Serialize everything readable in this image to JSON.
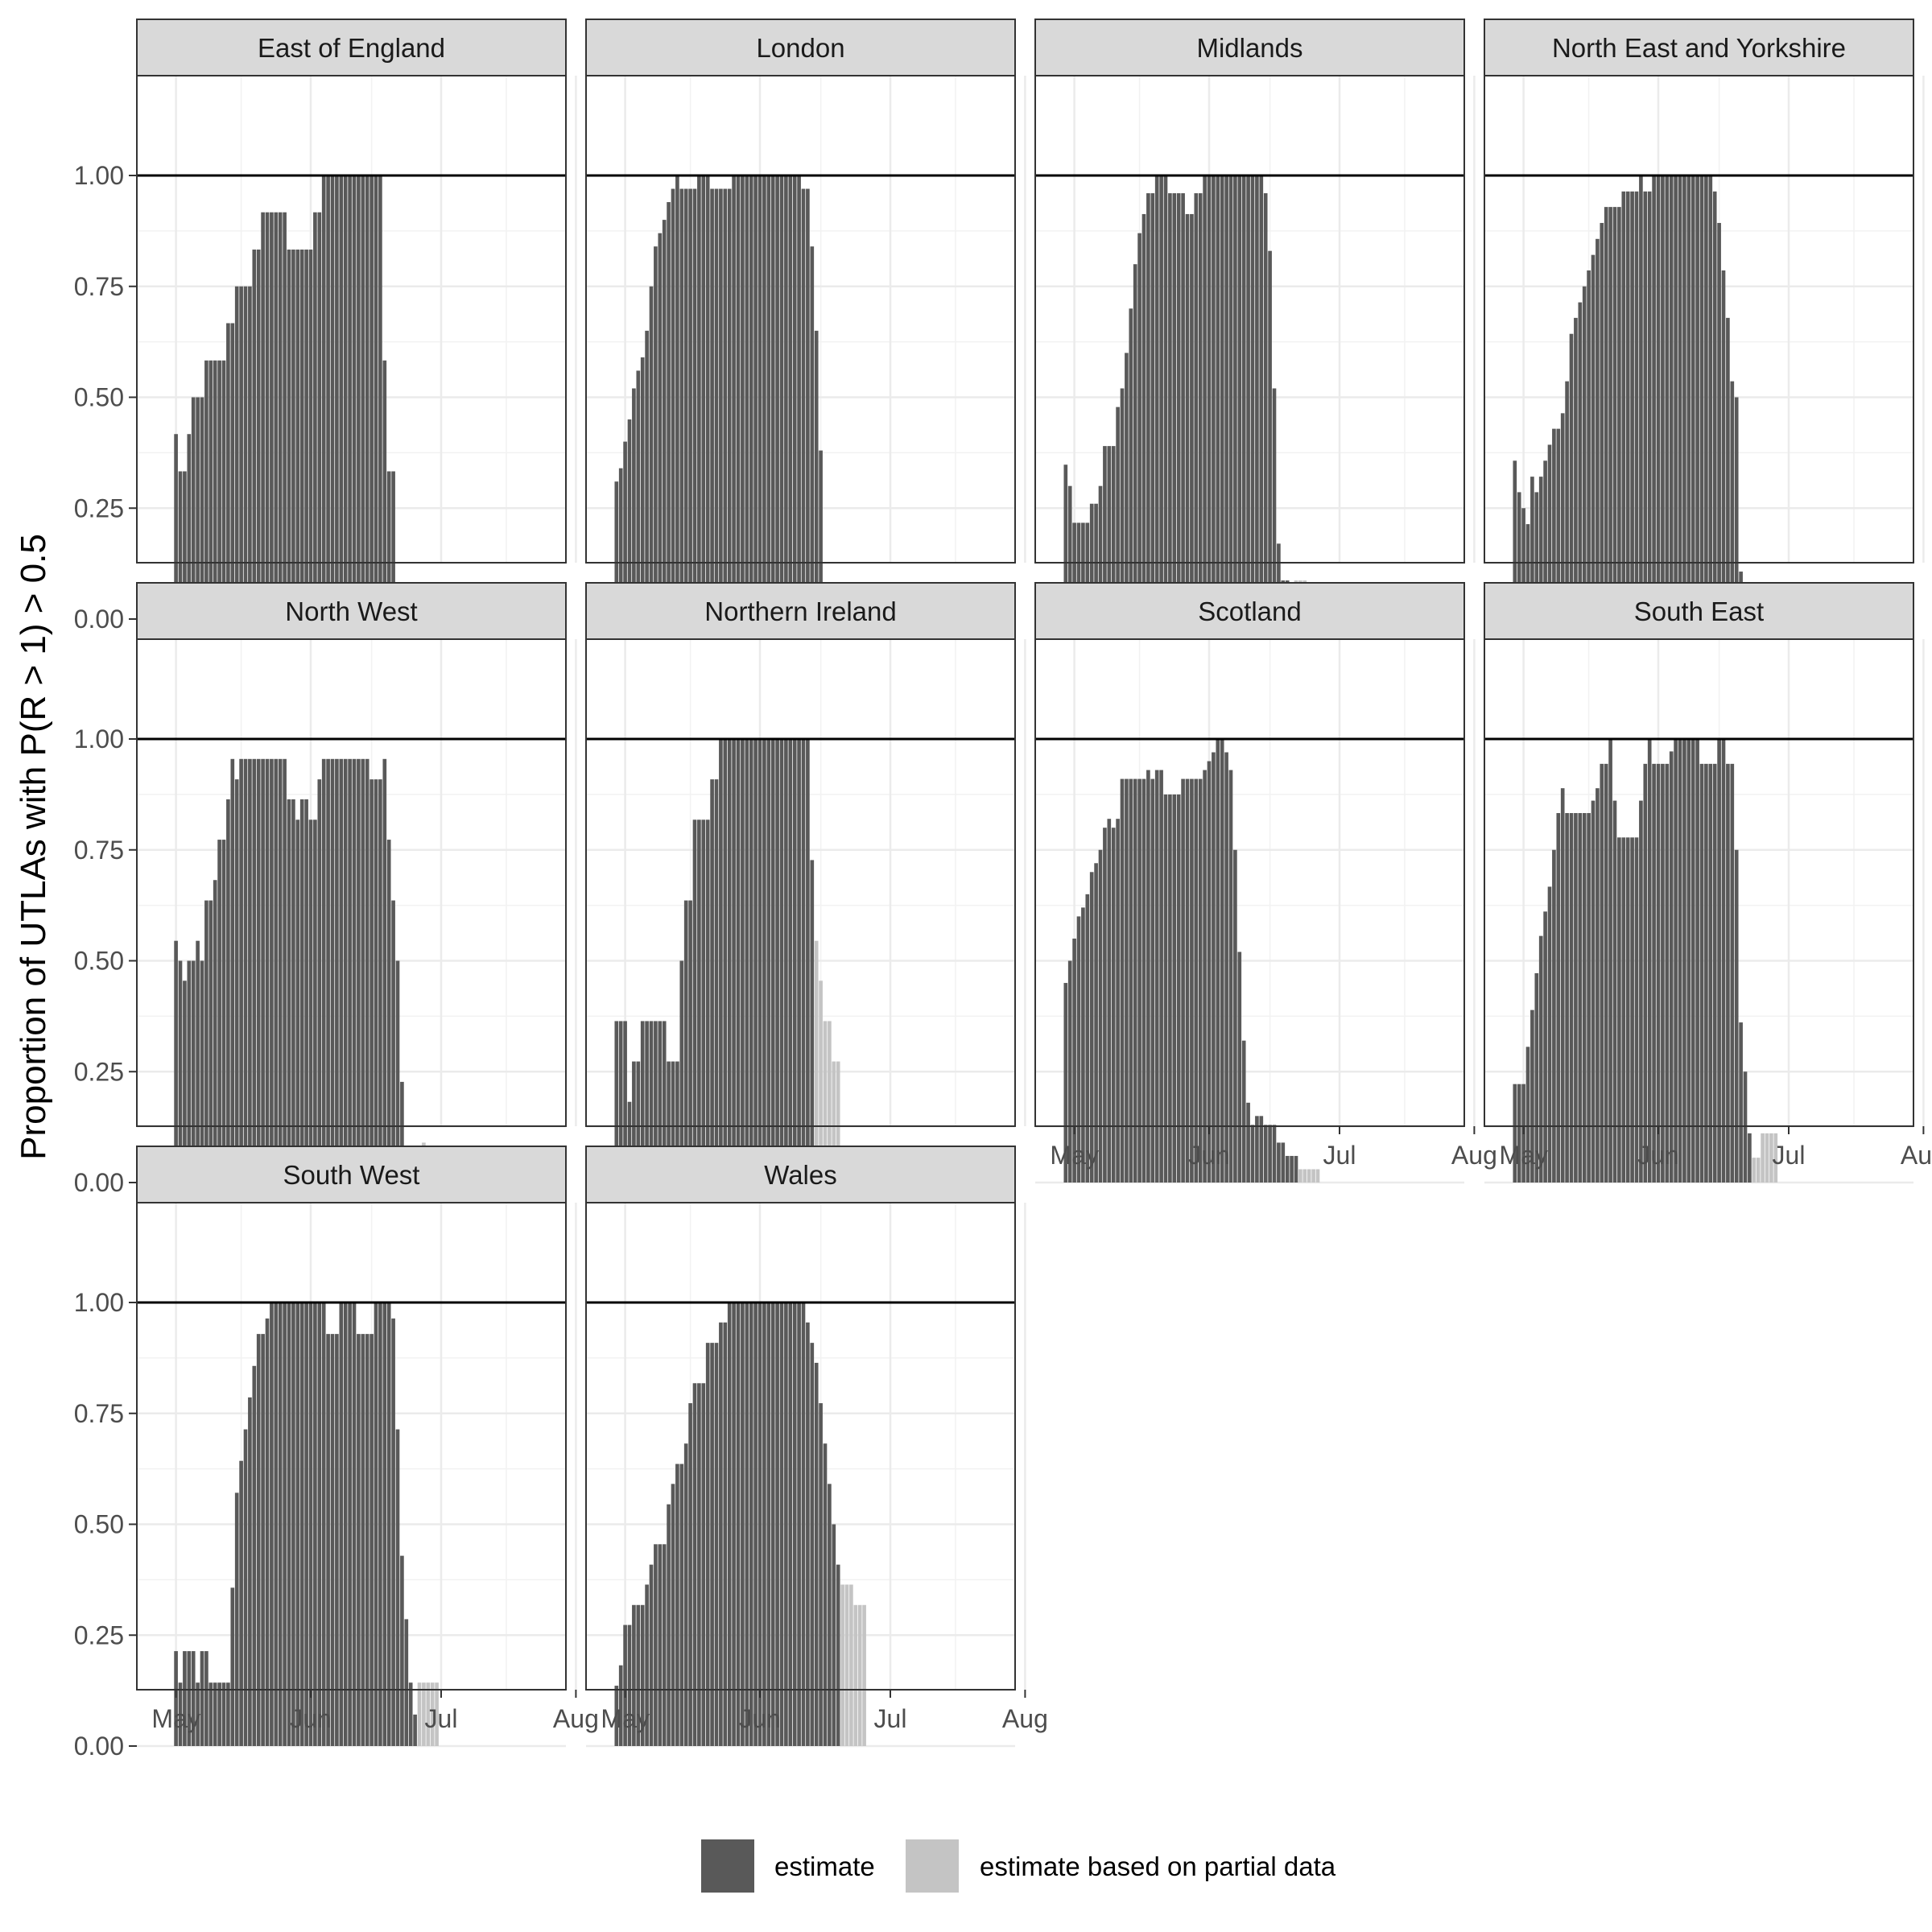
{
  "chart_data": {
    "type": "bar",
    "layout": "facet-grid",
    "ylabel": "Proportion of UTLAs with P(R > 1) > 0.5",
    "xlabel": "",
    "ylim": [
      0,
      1.05
    ],
    "y_ticks": [
      "0.00",
      "0.25",
      "0.50",
      "0.75",
      "1.00"
    ],
    "y_tick_values": [
      0,
      0.25,
      0.5,
      0.75,
      1.0
    ],
    "x_ticks": [
      "May",
      "Jun",
      "Jul",
      "Aug"
    ],
    "x_tick_dates": [
      "2021-05-01",
      "2021-06-01",
      "2021-07-01",
      "2021-08-01"
    ],
    "xlim": [
      "2021-04-27",
      "2021-08-01"
    ],
    "reference_line_y": 1.0,
    "grid": true,
    "legend": {
      "position": "bottom",
      "entries": [
        {
          "label": "estimate",
          "color": "#595959"
        },
        {
          "label": "estimate based on partial data",
          "color": "#c4c4c4"
        }
      ]
    },
    "panels": [
      {
        "name": "East of England",
        "dates": {
          "start": "2021-05-01",
          "end": "2021-07-26"
        },
        "segments": [
          [
            1,
            0.417
          ],
          [
            2,
            0.333
          ],
          [
            1,
            0.417
          ],
          [
            3,
            0.5
          ],
          [
            5,
            0.583
          ],
          [
            2,
            0.667
          ],
          [
            4,
            0.75
          ],
          [
            2,
            0.833
          ],
          [
            6,
            0.917
          ],
          [
            6,
            0.833
          ],
          [
            1,
            0.917
          ],
          [
            1,
            0.917
          ],
          [
            14,
            1.0
          ],
          [
            1,
            0.583
          ],
          [
            2,
            0.333
          ],
          [
            3,
            0.083
          ]
        ],
        "partial": []
      },
      {
        "name": "London",
        "dates": {
          "start": "2021-04-29",
          "end": "2021-07-17"
        },
        "segments": [
          [
            1,
            0.31
          ],
          [
            1,
            0.34
          ],
          [
            1,
            0.4
          ],
          [
            1,
            0.45
          ],
          [
            1,
            0.52
          ],
          [
            1,
            0.56
          ],
          [
            1,
            0.59
          ],
          [
            1,
            0.65
          ],
          [
            1,
            0.75
          ],
          [
            1,
            0.84
          ],
          [
            1,
            0.87
          ],
          [
            1,
            0.9
          ],
          [
            1,
            0.94
          ],
          [
            1,
            0.97
          ],
          [
            1,
            1.0
          ],
          [
            4,
            0.97
          ],
          [
            3,
            1.0
          ],
          [
            5,
            0.97
          ],
          [
            16,
            1.0
          ],
          [
            1,
            0.97
          ],
          [
            1,
            0.97
          ],
          [
            1,
            0.84
          ],
          [
            1,
            0.65
          ],
          [
            1,
            0.38
          ],
          [
            1,
            0.06
          ]
        ],
        "partial": []
      },
      {
        "name": "Midlands",
        "dates": {
          "start": "2021-04-29",
          "end": "2021-07-29"
        },
        "segments": [
          [
            1,
            0.348
          ],
          [
            1,
            0.3
          ],
          [
            4,
            0.217
          ],
          [
            2,
            0.26
          ],
          [
            1,
            0.3
          ],
          [
            3,
            0.39
          ],
          [
            1,
            0.478
          ],
          [
            1,
            0.52
          ],
          [
            1,
            0.6
          ],
          [
            1,
            0.7
          ],
          [
            1,
            0.8
          ],
          [
            1,
            0.87
          ],
          [
            1,
            0.913
          ],
          [
            2,
            0.96
          ],
          [
            3,
            1.0
          ],
          [
            4,
            0.96
          ],
          [
            2,
            0.913
          ],
          [
            2,
            0.96
          ],
          [
            14,
            1.0
          ],
          [
            1,
            0.96
          ],
          [
            1,
            0.83
          ],
          [
            1,
            0.52
          ],
          [
            1,
            0.17
          ],
          [
            1,
            0.087
          ],
          [
            1,
            0.087
          ]
        ],
        "partial": [
          [
            1,
            0.043
          ],
          [
            3,
            0.087
          ]
        ]
      },
      {
        "name": "North East and Yorkshire",
        "dates": {
          "start": "2021-04-29",
          "end": "2021-07-18"
        },
        "segments": [
          [
            1,
            0.357
          ],
          [
            1,
            0.286
          ],
          [
            1,
            0.25
          ],
          [
            1,
            0.214
          ],
          [
            1,
            0.321
          ],
          [
            1,
            0.286
          ],
          [
            1,
            0.321
          ],
          [
            1,
            0.357
          ],
          [
            1,
            0.393
          ],
          [
            2,
            0.429
          ],
          [
            1,
            0.464
          ],
          [
            1,
            0.536
          ],
          [
            1,
            0.643
          ],
          [
            1,
            0.679
          ],
          [
            1,
            0.714
          ],
          [
            1,
            0.75
          ],
          [
            1,
            0.786
          ],
          [
            1,
            0.821
          ],
          [
            1,
            0.857
          ],
          [
            1,
            0.893
          ],
          [
            2,
            0.929
          ],
          [
            2,
            0.929
          ],
          [
            4,
            0.964
          ],
          [
            1,
            1.0
          ],
          [
            1,
            0.964
          ],
          [
            1,
            0.964
          ],
          [
            1,
            1.0
          ],
          [
            13,
            1.0
          ],
          [
            1,
            0.964
          ],
          [
            1,
            0.893
          ],
          [
            1,
            0.786
          ],
          [
            1,
            0.679
          ],
          [
            1,
            0.536
          ],
          [
            1,
            0.5
          ],
          [
            1,
            0.107
          ]
        ],
        "partial": []
      },
      {
        "name": "North West",
        "dates": {
          "start": "2021-05-01",
          "end": "2021-08-01"
        },
        "segments": [
          [
            1,
            0.545
          ],
          [
            1,
            0.5
          ],
          [
            1,
            0.455
          ],
          [
            2,
            0.5
          ],
          [
            1,
            0.545
          ],
          [
            1,
            0.5
          ],
          [
            2,
            0.636
          ],
          [
            1,
            0.682
          ],
          [
            2,
            0.773
          ],
          [
            1,
            0.864
          ],
          [
            1,
            0.955
          ],
          [
            1,
            0.909
          ],
          [
            1,
            0.955
          ],
          [
            10,
            0.955
          ],
          [
            2,
            0.864
          ],
          [
            1,
            0.818
          ],
          [
            2,
            0.864
          ],
          [
            1,
            0.818
          ],
          [
            1,
            0.818
          ],
          [
            1,
            0.909
          ],
          [
            11,
            0.955
          ],
          [
            3,
            0.909
          ],
          [
            1,
            0.955
          ],
          [
            1,
            0.773
          ],
          [
            1,
            0.636
          ],
          [
            1,
            0.5
          ],
          [
            1,
            0.227
          ]
        ],
        "partial": [
          [
            4,
            0.045
          ],
          [
            1,
            0.09
          ]
        ]
      },
      {
        "name": "Northern Ireland",
        "dates": {
          "start": "2021-04-29",
          "end": "2021-07-26"
        },
        "segments": [
          [
            3,
            0.364
          ],
          [
            1,
            0.182
          ],
          [
            2,
            0.273
          ],
          [
            6,
            0.364
          ],
          [
            3,
            0.273
          ],
          [
            1,
            0.5
          ],
          [
            2,
            0.636
          ],
          [
            4,
            0.818
          ],
          [
            1,
            0.909
          ],
          [
            1,
            0.909
          ],
          [
            21,
            1.0
          ],
          [
            1,
            0.727
          ]
        ],
        "partial": [
          [
            1,
            0.545
          ],
          [
            1,
            0.455
          ],
          [
            2,
            0.364
          ],
          [
            2,
            0.273
          ]
        ]
      },
      {
        "name": "Scotland",
        "dates": {
          "start": "2021-04-29",
          "end": "2021-07-29"
        },
        "segments": [
          [
            1,
            0.45
          ],
          [
            1,
            0.5
          ],
          [
            1,
            0.55
          ],
          [
            1,
            0.6
          ],
          [
            1,
            0.62
          ],
          [
            1,
            0.65
          ],
          [
            1,
            0.7
          ],
          [
            1,
            0.72
          ],
          [
            1,
            0.75
          ],
          [
            1,
            0.8
          ],
          [
            1,
            0.82
          ],
          [
            1,
            0.8
          ],
          [
            1,
            0.82
          ],
          [
            6,
            0.91
          ],
          [
            1,
            0.93
          ],
          [
            1,
            0.91
          ],
          [
            1,
            0.93
          ],
          [
            1,
            0.93
          ],
          [
            4,
            0.875
          ],
          [
            1,
            0.91
          ],
          [
            4,
            0.91
          ],
          [
            1,
            0.93
          ],
          [
            1,
            0.95
          ],
          [
            1,
            0.97
          ],
          [
            2,
            1.0
          ],
          [
            1,
            0.97
          ],
          [
            1,
            0.93
          ],
          [
            1,
            0.75
          ],
          [
            1,
            0.52
          ],
          [
            1,
            0.32
          ],
          [
            1,
            0.18
          ],
          [
            1,
            0.13
          ],
          [
            2,
            0.15
          ],
          [
            3,
            0.13
          ],
          [
            2,
            0.09
          ],
          [
            3,
            0.06
          ]
        ],
        "partial": [
          [
            5,
            0.03
          ]
        ]
      },
      {
        "name": "South East",
        "dates": {
          "start": "2021-04-29",
          "end": "2021-07-29"
        },
        "segments": [
          [
            3,
            0.222
          ],
          [
            1,
            0.306
          ],
          [
            1,
            0.389
          ],
          [
            1,
            0.472
          ],
          [
            1,
            0.556
          ],
          [
            1,
            0.611
          ],
          [
            1,
            0.667
          ],
          [
            1,
            0.75
          ],
          [
            1,
            0.833
          ],
          [
            1,
            0.889
          ],
          [
            6,
            0.833
          ],
          [
            1,
            0.861
          ],
          [
            1,
            0.889
          ],
          [
            1,
            0.944
          ],
          [
            1,
            0.944
          ],
          [
            1,
            1.0
          ],
          [
            1,
            0.861
          ],
          [
            1,
            0.778
          ],
          [
            4,
            0.778
          ],
          [
            1,
            0.861
          ],
          [
            1,
            0.944
          ],
          [
            1,
            1.0
          ],
          [
            4,
            0.944
          ],
          [
            1,
            0.972
          ],
          [
            1,
            1.0
          ],
          [
            5,
            1.0
          ],
          [
            4,
            0.944
          ],
          [
            1,
            1.0
          ],
          [
            1,
            1.0
          ],
          [
            1,
            0.944
          ],
          [
            1,
            0.944
          ],
          [
            1,
            0.75
          ],
          [
            1,
            0.361
          ],
          [
            1,
            0.25
          ],
          [
            1,
            0.111
          ]
        ],
        "partial": [
          [
            2,
            0.056
          ],
          [
            4,
            0.111
          ]
        ]
      },
      {
        "name": "South West",
        "dates": {
          "start": "2021-05-01",
          "end": "2021-08-01"
        },
        "segments": [
          [
            1,
            0.214
          ],
          [
            1,
            0.143
          ],
          [
            3,
            0.214
          ],
          [
            1,
            0.143
          ],
          [
            2,
            0.214
          ],
          [
            5,
            0.143
          ],
          [
            1,
            0.357
          ],
          [
            1,
            0.571
          ],
          [
            1,
            0.643
          ],
          [
            1,
            0.714
          ],
          [
            1,
            0.786
          ],
          [
            1,
            0.857
          ],
          [
            2,
            0.929
          ],
          [
            1,
            0.964
          ],
          [
            13,
            1.0
          ],
          [
            3,
            0.929
          ],
          [
            4,
            1.0
          ],
          [
            4,
            0.929
          ],
          [
            4,
            1.0
          ],
          [
            1,
            0.964
          ],
          [
            1,
            0.714
          ],
          [
            1,
            0.429
          ],
          [
            1,
            0.286
          ],
          [
            1,
            0.143
          ],
          [
            1,
            0.071
          ]
        ],
        "partial": [
          [
            5,
            0.143
          ]
        ]
      },
      {
        "name": "Wales",
        "dates": {
          "start": "2021-04-29",
          "end": "2021-07-26"
        },
        "segments": [
          [
            1,
            0.136
          ],
          [
            1,
            0.182
          ],
          [
            1,
            0.273
          ],
          [
            1,
            0.273
          ],
          [
            3,
            0.318
          ],
          [
            1,
            0.364
          ],
          [
            1,
            0.409
          ],
          [
            3,
            0.455
          ],
          [
            1,
            0.545
          ],
          [
            1,
            0.591
          ],
          [
            2,
            0.636
          ],
          [
            1,
            0.682
          ],
          [
            1,
            0.773
          ],
          [
            3,
            0.818
          ],
          [
            3,
            0.909
          ],
          [
            2,
            0.955
          ],
          [
            18,
            1.0
          ],
          [
            1,
            0.955
          ],
          [
            1,
            0.909
          ],
          [
            1,
            0.864
          ],
          [
            1,
            0.773
          ],
          [
            1,
            0.682
          ],
          [
            1,
            0.591
          ],
          [
            1,
            0.5
          ],
          [
            1,
            0.409
          ]
        ],
        "partial": [
          [
            3,
            0.364
          ],
          [
            3,
            0.318
          ]
        ]
      }
    ]
  }
}
